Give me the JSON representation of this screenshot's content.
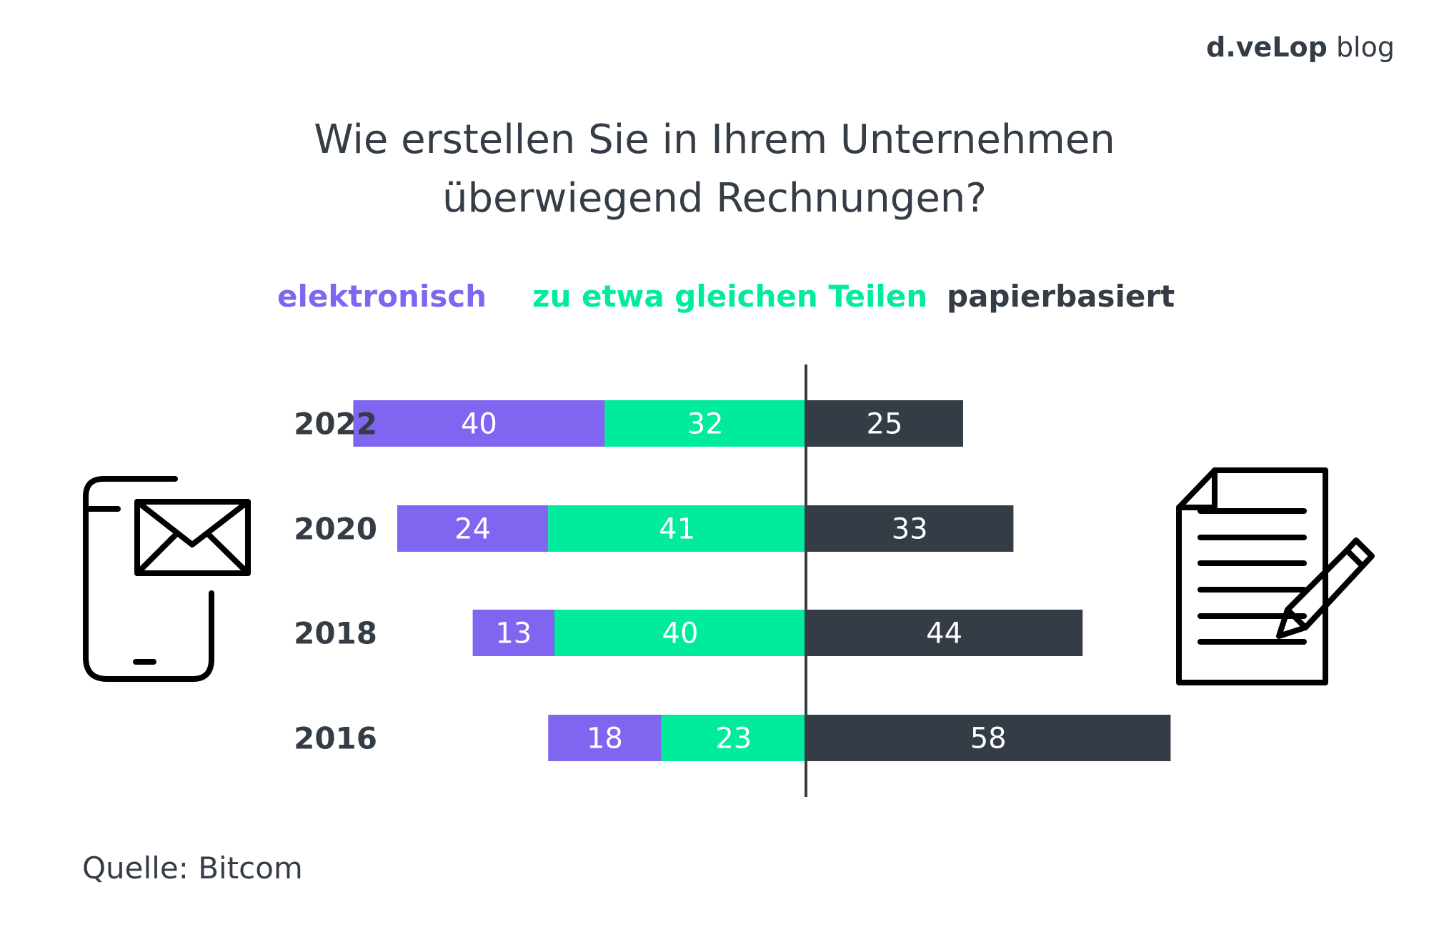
{
  "brand": {
    "name": "d.veLop",
    "suffix": "blog"
  },
  "title_line1": "Wie erstellen Sie in Ihrem Unternehmen",
  "title_line2": "überwiegend Rechnungen?",
  "source": "Quelle: Bitcom",
  "colors": {
    "elektronisch": "#8065f0",
    "gleich": "#00eb9c",
    "papier": "#343c46",
    "text": "#343c46"
  },
  "icons": {
    "left": "smartphone-email-icon",
    "right": "document-signature-icon"
  },
  "chart_data": {
    "type": "bar",
    "subtype": "diverging-stacked-horizontal",
    "categories": [
      "2022",
      "2020",
      "2018",
      "2016"
    ],
    "series": [
      {
        "name": "elektronisch",
        "values": [
          40,
          24,
          13,
          18
        ],
        "color": "#8065f0"
      },
      {
        "name": "zu etwa gleichen Teilen",
        "values": [
          32,
          41,
          40,
          23
        ],
        "color": "#00eb9c"
      },
      {
        "name": "papierbasiert",
        "values": [
          25,
          33,
          44,
          58
        ],
        "color": "#343c46"
      }
    ],
    "title": "Wie erstellen Sie in Ihrem Unternehmen überwiegend Rechnungen?",
    "legend": "top",
    "grid": false
  }
}
